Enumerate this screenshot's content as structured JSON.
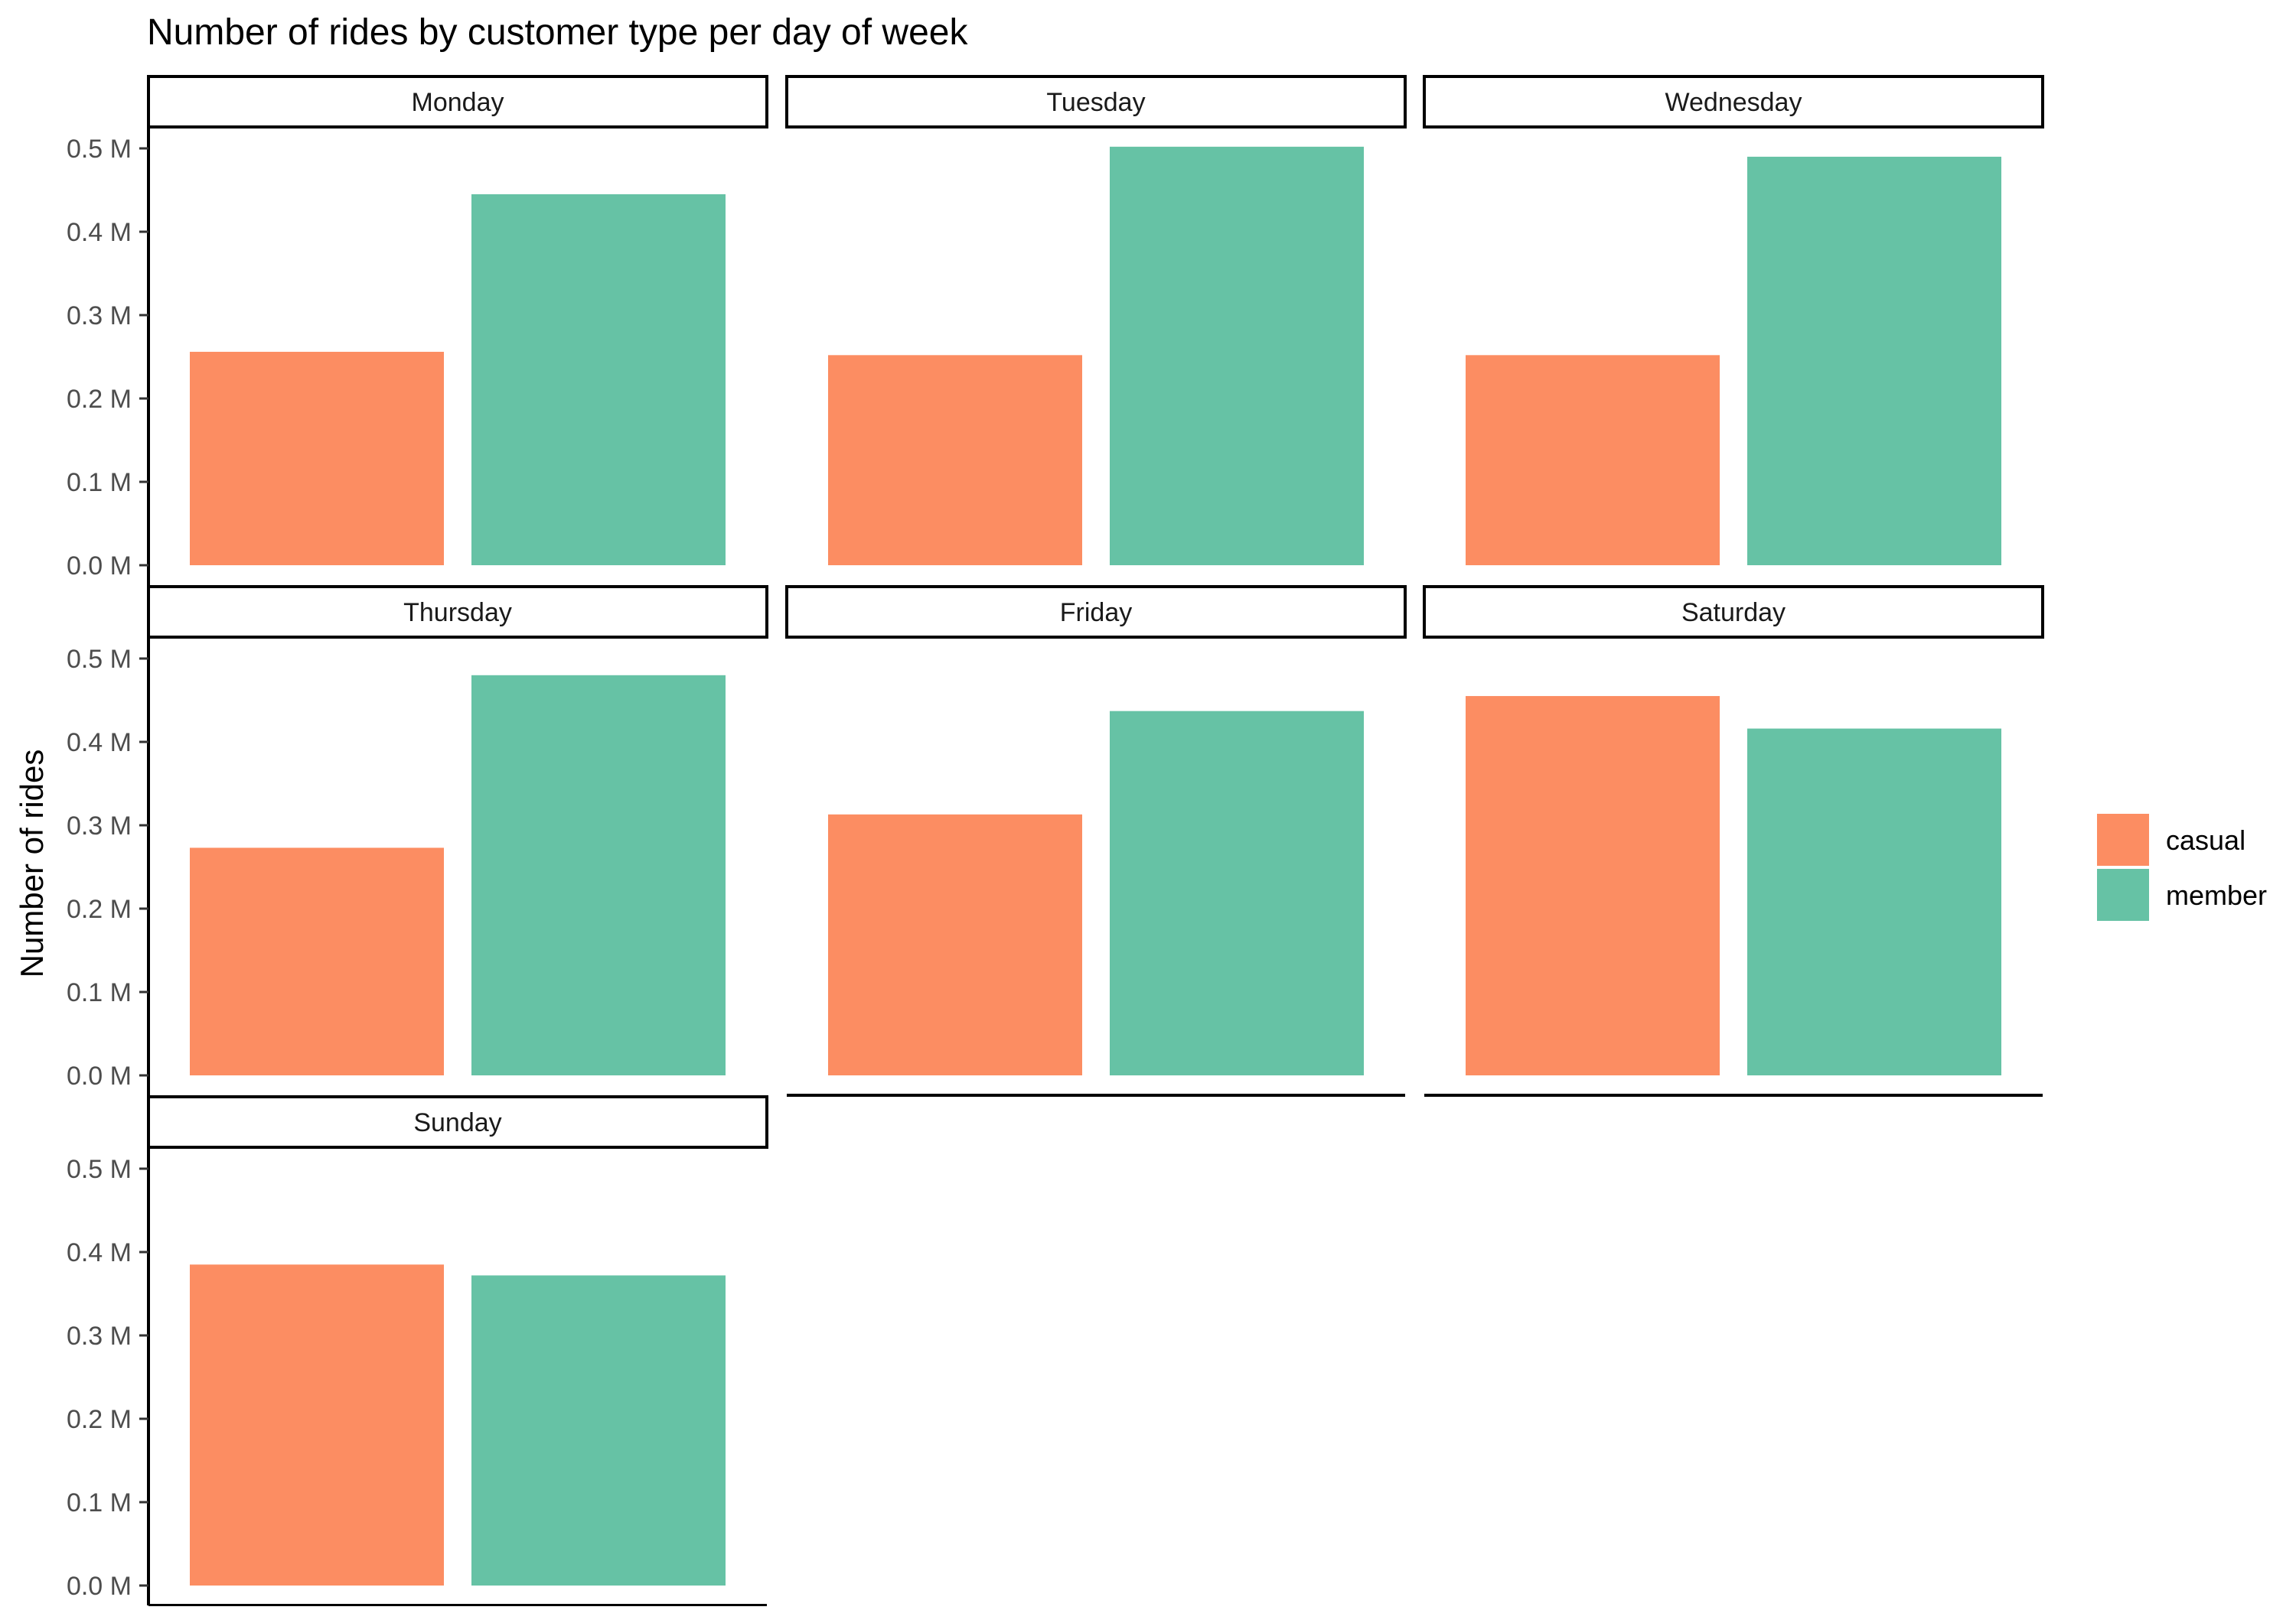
{
  "chart_data": {
    "type": "bar",
    "title": "Number of rides by customer type per day of week",
    "ylabel": "Number of rides",
    "xlabel": "",
    "ylim": [
      0,
      0.5
    ],
    "ytick_values": [
      0,
      0.1,
      0.2,
      0.3,
      0.4,
      0.5
    ],
    "ytick_labels": [
      "0.0 M",
      "0.1 M",
      "0.2 M",
      "0.3 M",
      "0.4 M",
      "0.5 M"
    ],
    "grid": false,
    "legend_position": "right",
    "series": [
      {
        "name": "casual",
        "color": "#FC8D62"
      },
      {
        "name": "member",
        "color": "#66C2A5"
      }
    ],
    "panels": [
      {
        "title": "Monday",
        "values": [
          0.256,
          0.445
        ]
      },
      {
        "title": "Tuesday",
        "values": [
          0.252,
          0.502
        ]
      },
      {
        "title": "Wednesday",
        "values": [
          0.252,
          0.49
        ]
      },
      {
        "title": "Thursday",
        "values": [
          0.273,
          0.48
        ]
      },
      {
        "title": "Friday",
        "values": [
          0.313,
          0.437
        ]
      },
      {
        "title": "Saturday",
        "values": [
          0.455,
          0.416
        ]
      },
      {
        "title": "Sunday",
        "values": [
          0.385,
          0.372
        ]
      }
    ]
  }
}
